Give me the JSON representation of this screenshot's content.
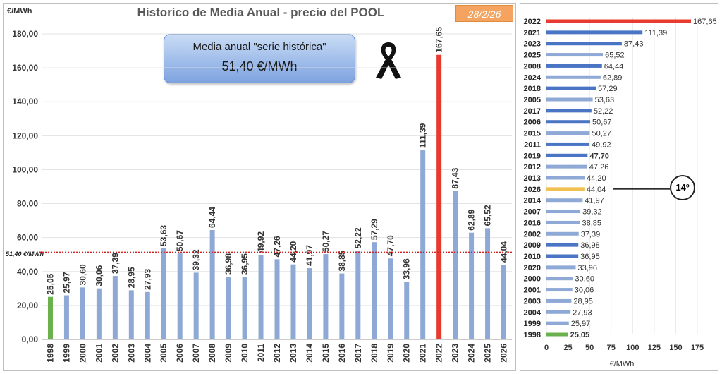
{
  "title": "Historico de Media Anual - precio del POOL",
  "unit_label": "€/MWh",
  "date_badge": "28/2/26",
  "average_box": {
    "line1": "Media anual \"serie histórica\"",
    "line2": "51,40 €/MWh"
  },
  "average_marker_label": "51,40 €/MWh",
  "average_value": 51.4,
  "rank_badge": "14º",
  "colors": {
    "default_bar": "#8fa9d6",
    "rank_bar": "#4a74c4",
    "max_bar": "#e63b2e",
    "min_bar": "#6ab04c",
    "current_bar": "#f0c050",
    "avg_line": "#d62020"
  },
  "chart_data": [
    {
      "type": "bar",
      "title": "Historico de Media Anual - precio del POOL",
      "ylabel": "€/MWh",
      "ylim": [
        0,
        180
      ],
      "yticks": [
        "0,00",
        "20,00",
        "40,00",
        "60,00",
        "80,00",
        "100,00",
        "120,00",
        "140,00",
        "160,00",
        "180,00"
      ],
      "categories": [
        "1998",
        "1999",
        "2000",
        "2001",
        "2002",
        "2003",
        "2004",
        "2005",
        "2006",
        "2007",
        "2008",
        "2009",
        "2010",
        "2011",
        "2012",
        "2013",
        "2014",
        "2015",
        "2016",
        "2017",
        "2018",
        "2019",
        "2020",
        "2021",
        "2022",
        "2023",
        "2024",
        "2025",
        "2026"
      ],
      "values": [
        25.05,
        25.97,
        30.6,
        30.06,
        37.39,
        28.95,
        27.93,
        53.63,
        50.67,
        39.32,
        64.44,
        36.98,
        36.95,
        49.92,
        47.26,
        44.2,
        41.97,
        50.27,
        38.85,
        52.22,
        57.29,
        47.7,
        33.96,
        111.39,
        167.65,
        87.43,
        62.89,
        65.52,
        44.04
      ],
      "labels": [
        "25,05",
        "25,97",
        "30,60",
        "30,06",
        "37,39",
        "28,95",
        "27,93",
        "53,63",
        "50,67",
        "39,32",
        "64,44",
        "36,98",
        "36,95",
        "49,92",
        "47,26",
        "44,20",
        "41,97",
        "50,27",
        "38,85",
        "52,22",
        "57,29",
        "47,70",
        "33,96",
        "111,39",
        "167,65",
        "87,43",
        "62,89",
        "65,52",
        "44,04"
      ],
      "grid": true
    },
    {
      "type": "bar",
      "orientation": "horizontal",
      "xlabel": "€/MWh",
      "xlim": [
        0,
        175
      ],
      "xticks": [
        "0",
        "25",
        "50",
        "75",
        "100",
        "125",
        "150",
        "175"
      ],
      "categories": [
        "2022",
        "2021",
        "2023",
        "2025",
        "2008",
        "2024",
        "2018",
        "2005",
        "2017",
        "2006",
        "2015",
        "2011",
        "2019",
        "2012",
        "2013",
        "2026",
        "2014",
        "2007",
        "2016",
        "2002",
        "2009",
        "2010",
        "2020",
        "2000",
        "2001",
        "2003",
        "2004",
        "1999",
        "1998"
      ],
      "values": [
        167.65,
        111.39,
        87.43,
        65.52,
        64.44,
        62.89,
        57.29,
        53.63,
        52.22,
        50.67,
        50.27,
        49.92,
        47.7,
        47.26,
        44.2,
        44.04,
        41.97,
        39.32,
        38.85,
        37.39,
        36.98,
        36.95,
        33.96,
        30.6,
        30.06,
        28.95,
        27.93,
        25.97,
        25.05
      ],
      "labels": [
        "167,65",
        "111,39",
        "87,43",
        "65,52",
        "64,44",
        "62,89",
        "57,29",
        "53,63",
        "52,22",
        "50,67",
        "50,27",
        "49,92",
        "47,70",
        "47,26",
        "44,20",
        "44,04",
        "41,97",
        "39,32",
        "38,85",
        "37,39",
        "36,98",
        "36,95",
        "33,96",
        "30,60",
        "30,06",
        "28,95",
        "27,93",
        "25,97",
        "25,05"
      ],
      "highlight": {
        "2022": "max",
        "1998": "min",
        "2026": "current"
      },
      "grid": true
    }
  ]
}
